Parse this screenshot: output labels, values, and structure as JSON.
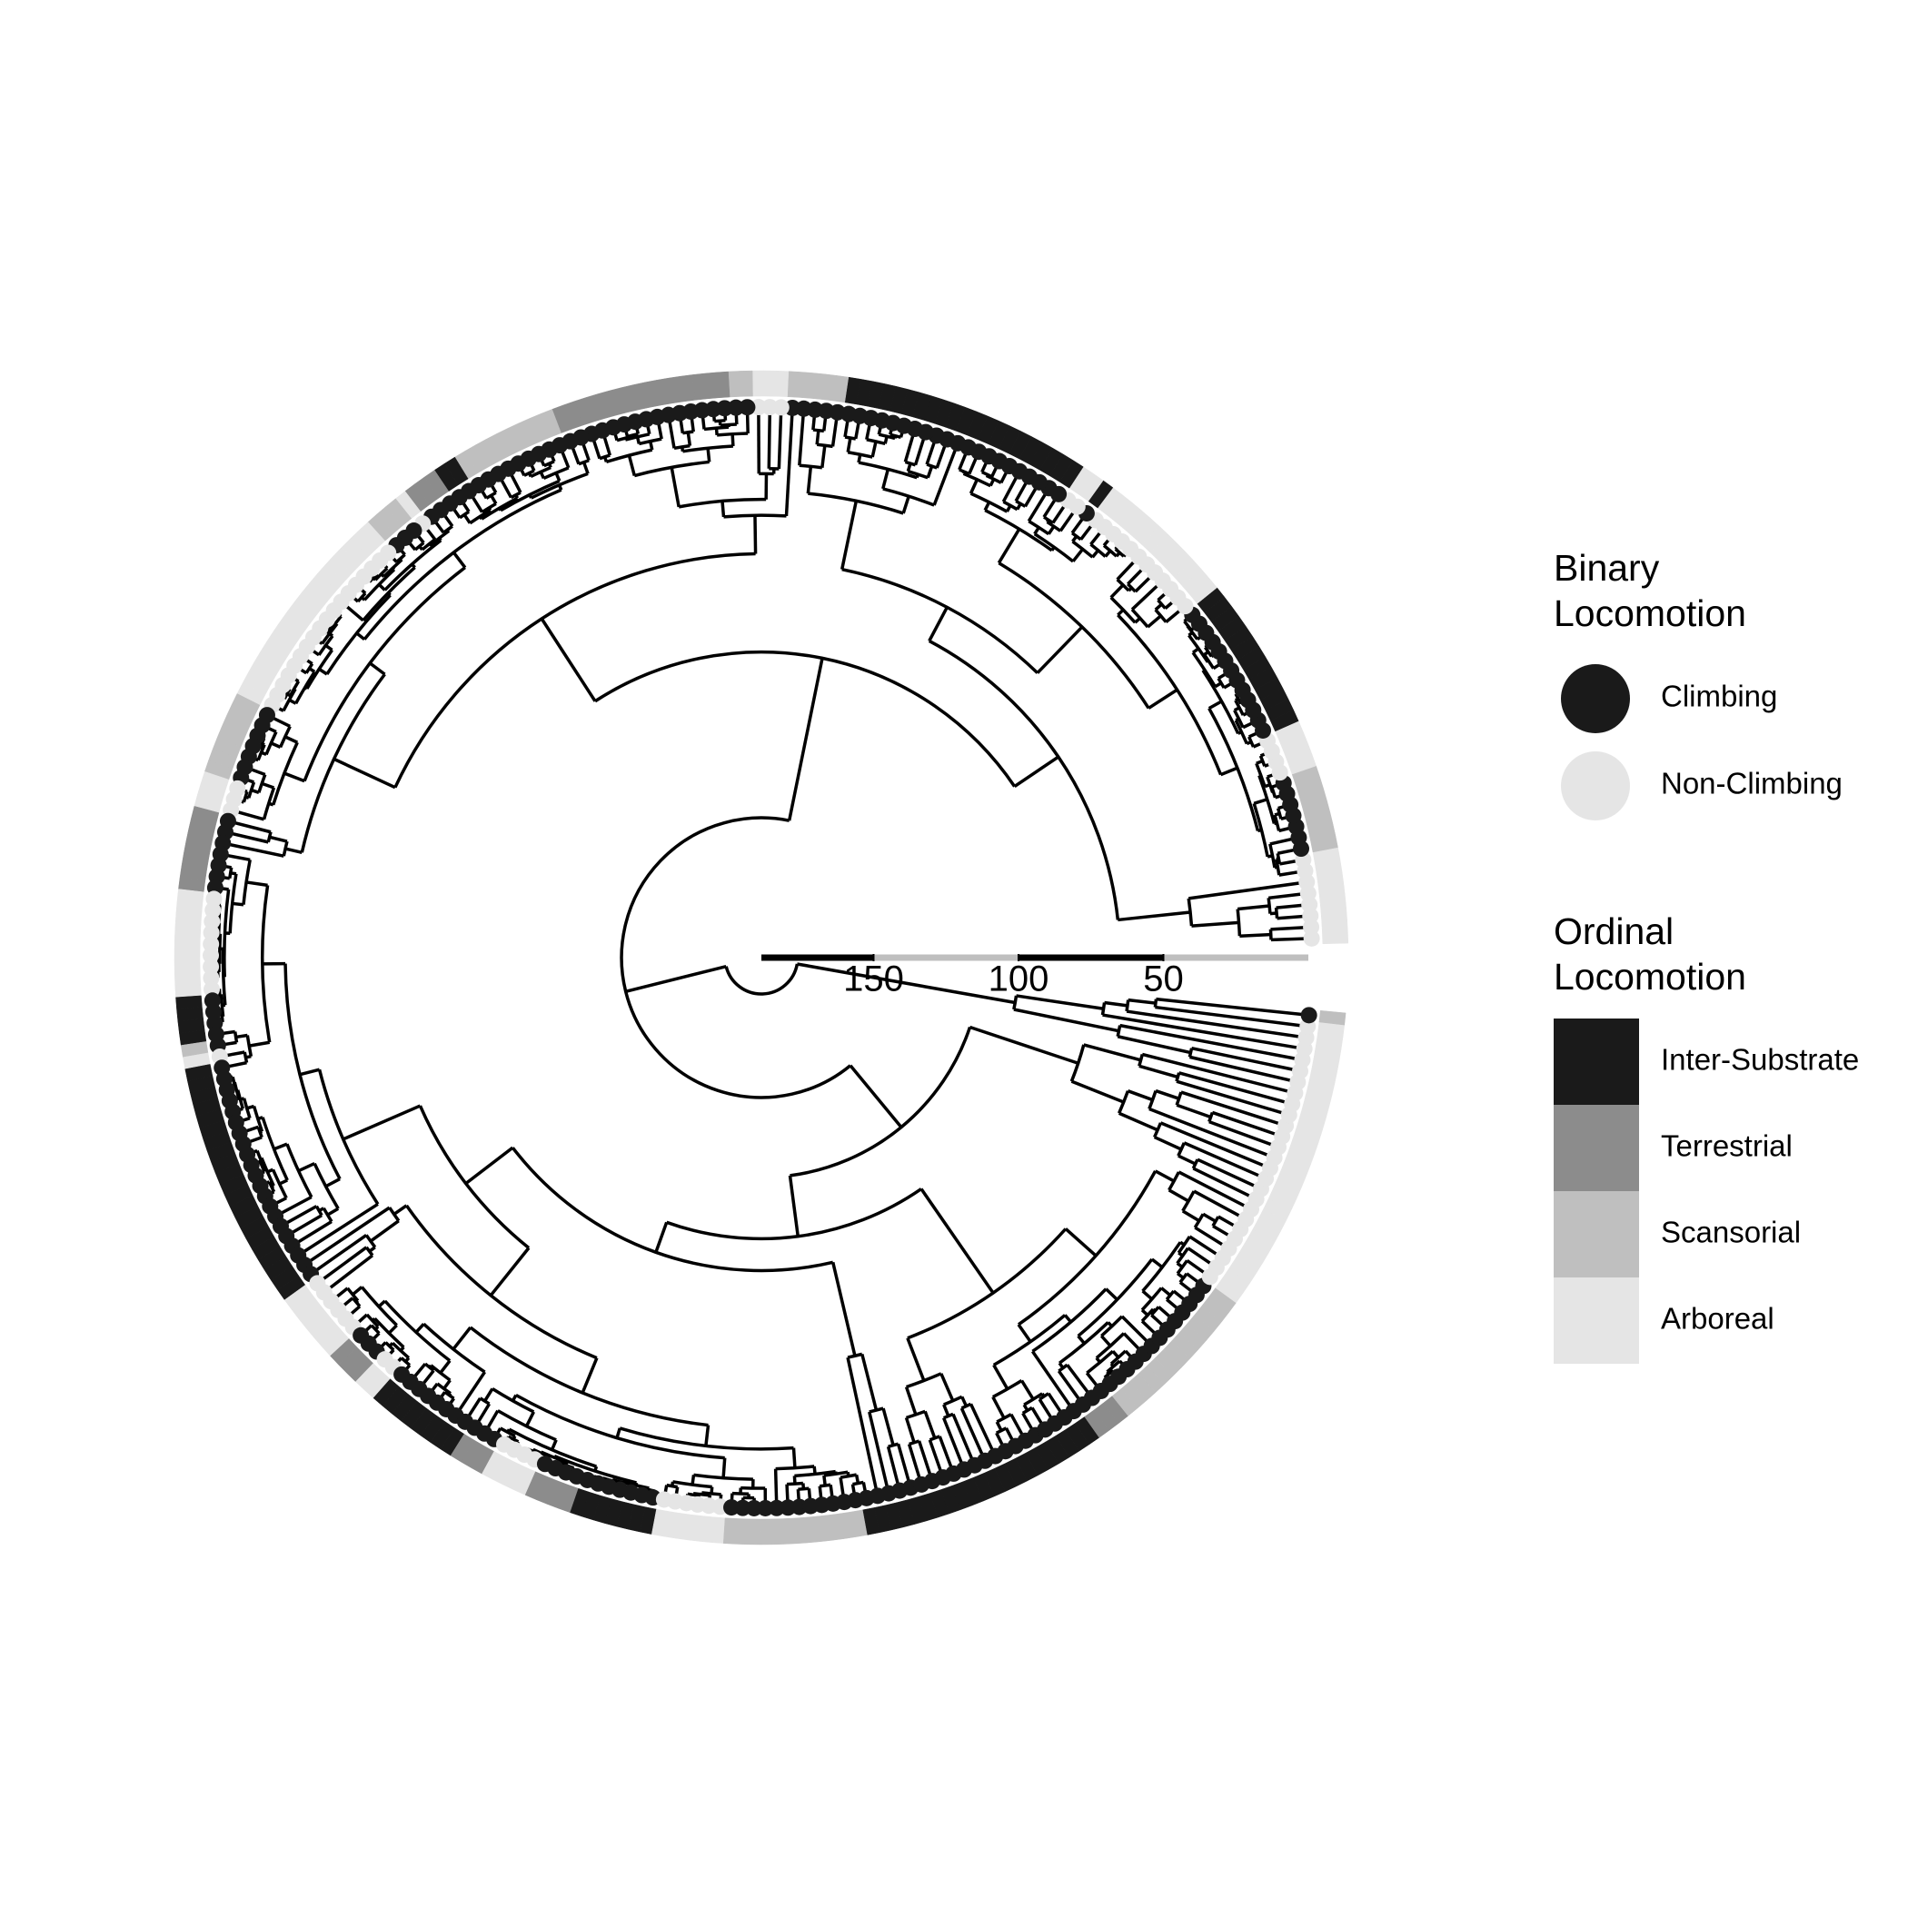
{
  "scale_bar": {
    "ticks": [
      150,
      100,
      50
    ]
  },
  "legends": [
    {
      "title": "Binary Locomotion",
      "shape": "circle",
      "items": [
        {
          "label": "Climbing",
          "color": "#1a1a1a"
        },
        {
          "label": "Non-Climbing",
          "color": "#e5e5e5"
        }
      ]
    },
    {
      "title": "Ordinal Locomotion",
      "shape": "square",
      "items": [
        {
          "label": "Inter-Substrate",
          "color": "#1a1a1a"
        },
        {
          "label": "Terrestrial",
          "color": "#8c8c8c"
        },
        {
          "label": "Scansorial",
          "color": "#bfbfbf"
        },
        {
          "label": "Arboreal",
          "color": "#e5e5e5"
        }
      ]
    }
  ]
}
